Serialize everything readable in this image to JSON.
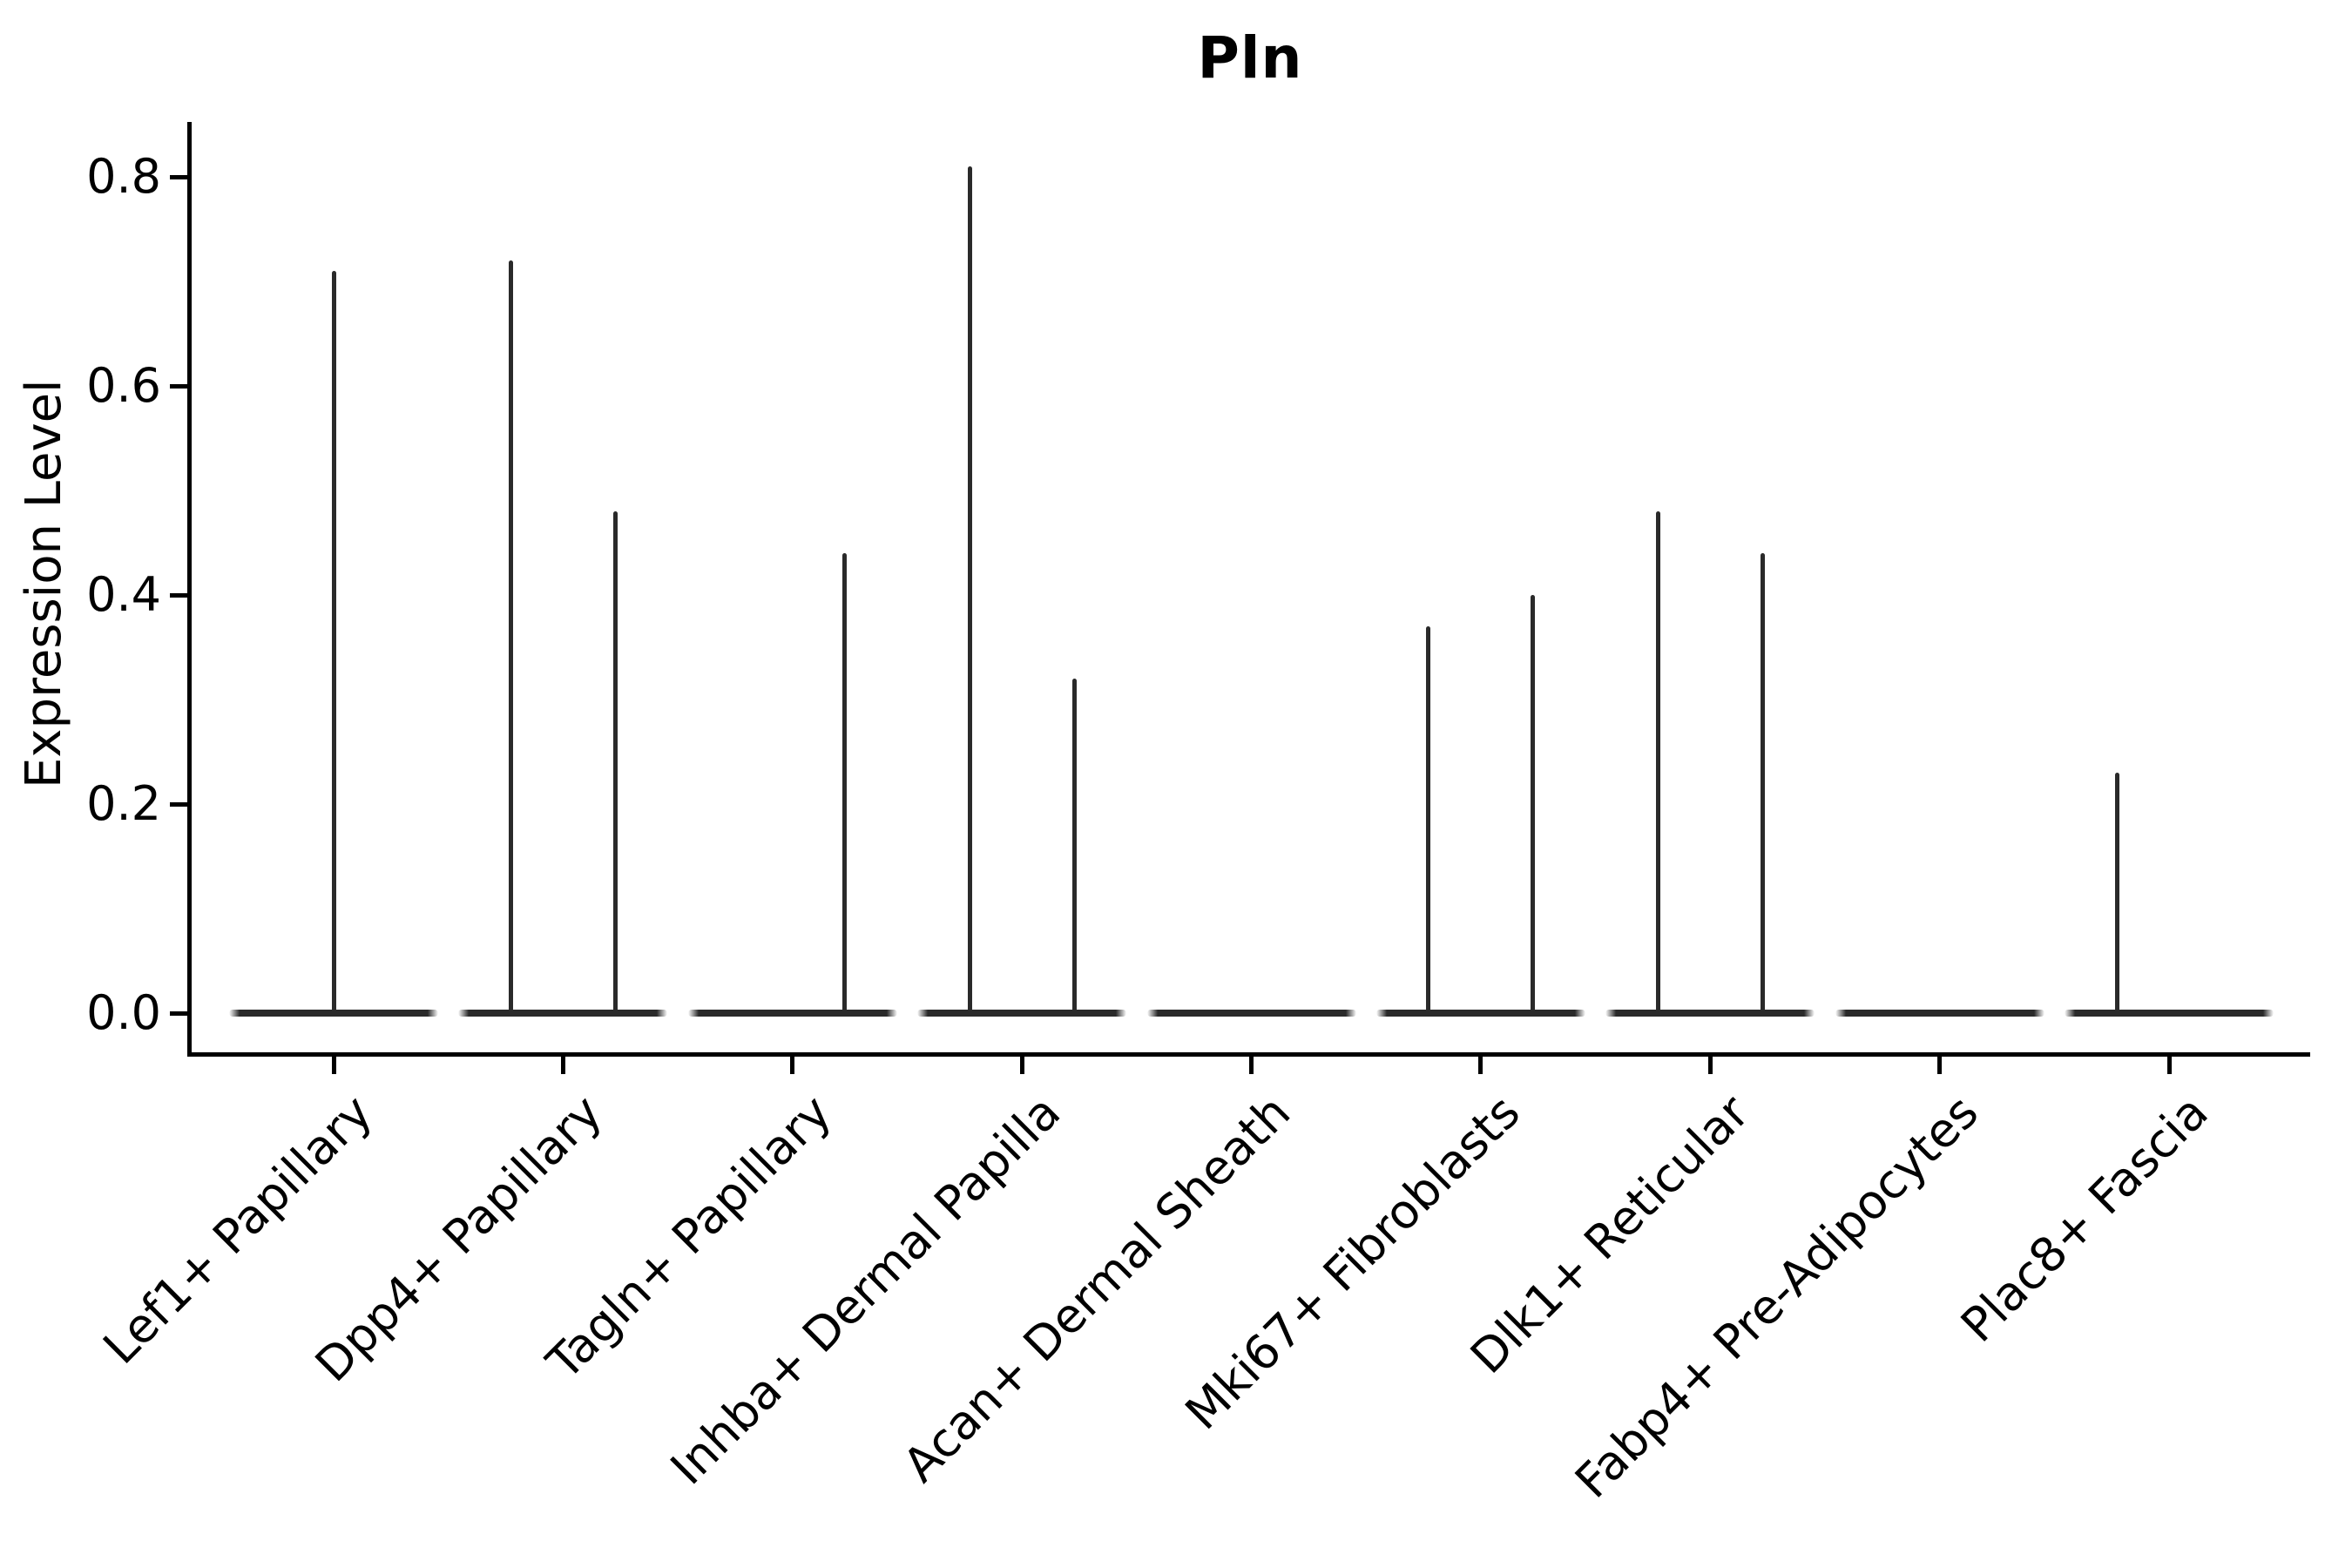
{
  "title": "Pln",
  "ylabel": "Expression Level",
  "colors": {
    "violin": "#2a2a2a",
    "axis": "#000000",
    "background": "#ffffff"
  },
  "chart_data": {
    "type": "violin",
    "title": "Pln",
    "xlabel": "",
    "ylabel": "Expression Level",
    "ylim": [
      0,
      0.85
    ],
    "yticks": [
      "0.0",
      "0.2",
      "0.4",
      "0.6",
      "0.8"
    ],
    "grid": false,
    "legend": false,
    "description": "Collapsed violins: expression is ~0 for most cells in every cluster (flat body at 0); thin spikes reach the maximum expression value. pos is the spike position within the category slot as a fraction of body width (-0.25 left, 0 center, 0.25 right).",
    "categories": [
      "Lef1+ Papillary",
      "Dpp4+ Papillary",
      "Tagln+ Papillary",
      "Inhba+ Dermal Papilla",
      "Acan+ Dermal Sheath",
      "Mki67+ Fibroblasts",
      "Dlk1+ Reticular",
      "Fabp4+ Pre-Adipocytes",
      "Plac8+ Fascia"
    ],
    "series": [
      {
        "category": "Lef1+ Papillary",
        "body_value": 0.0,
        "spikes": [
          {
            "pos": 0,
            "value": 0.71
          }
        ]
      },
      {
        "category": "Dpp4+ Papillary",
        "body_value": 0.0,
        "spikes": [
          {
            "pos": -0.25,
            "value": 0.72
          },
          {
            "pos": 0.25,
            "value": 0.48
          }
        ]
      },
      {
        "category": "Tagln+ Papillary",
        "body_value": 0.0,
        "spikes": [
          {
            "pos": 0.25,
            "value": 0.44
          }
        ]
      },
      {
        "category": "Inhba+ Dermal Papilla",
        "body_value": 0.0,
        "spikes": [
          {
            "pos": -0.25,
            "value": 0.81
          },
          {
            "pos": 0.25,
            "value": 0.32
          }
        ]
      },
      {
        "category": "Acan+ Dermal Sheath",
        "body_value": 0.0,
        "spikes": []
      },
      {
        "category": "Mki67+ Fibroblasts",
        "body_value": 0.0,
        "spikes": [
          {
            "pos": -0.25,
            "value": 0.37
          },
          {
            "pos": 0.25,
            "value": 0.4
          }
        ]
      },
      {
        "category": "Dlk1+ Reticular",
        "body_value": 0.0,
        "spikes": [
          {
            "pos": -0.25,
            "value": 0.48
          },
          {
            "pos": 0.25,
            "value": 0.44
          }
        ]
      },
      {
        "category": "Fabp4+ Pre-Adipocytes",
        "body_value": 0.0,
        "spikes": []
      },
      {
        "category": "Plac8+ Fascia",
        "body_value": 0.0,
        "spikes": [
          {
            "pos": -0.25,
            "value": 0.23
          }
        ]
      }
    ]
  }
}
